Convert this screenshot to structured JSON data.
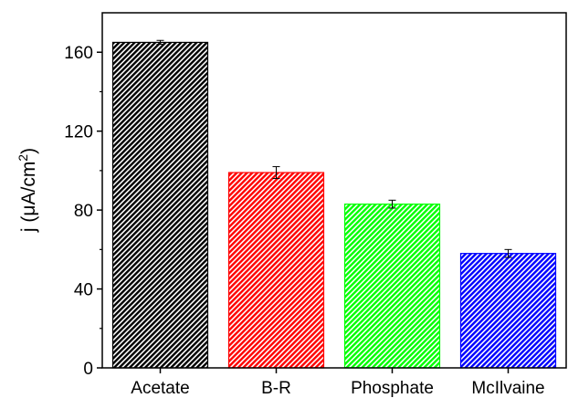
{
  "chart_data": {
    "type": "bar",
    "title": "",
    "xlabel": "",
    "ylabel_main": "j (μA/cm",
    "ylabel_sup": "2",
    "ylabel_close": ")",
    "categories": [
      "Acetate",
      "B-R",
      "Phosphate",
      "McIlvaine"
    ],
    "values": [
      165,
      99,
      83,
      58
    ],
    "errors": [
      1,
      3,
      2,
      2
    ],
    "colors": [
      "#000000",
      "#ff0000",
      "#00ff00",
      "#0000ff"
    ],
    "fill_pattern": "diagonal-hatch",
    "ylim": [
      0,
      180
    ],
    "yticks": [
      0,
      40,
      80,
      120,
      160
    ],
    "ytick_labels": [
      "0",
      "40",
      "80",
      "120",
      "160"
    ],
    "grid": false,
    "legend": "none"
  }
}
